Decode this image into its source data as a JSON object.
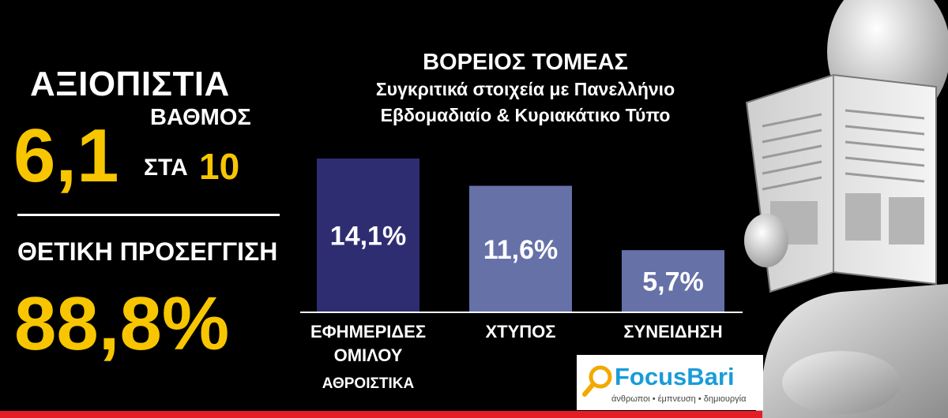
{
  "left_panel": {
    "reliability_label": "ΑΞΙΟΠΙΣΤΙΑ",
    "grade_label": "ΒΑΘΜΟΣ",
    "score": "6,1",
    "out_of_label": "ΣΤΑ",
    "scale": "10",
    "positive_label": "ΘΕΤΙΚΗ ΠΡΟΣΕΓΓΙΣΗ",
    "positive_value": "88,8%"
  },
  "chart_data": {
    "type": "bar",
    "title": "ΒΟΡΕΙΟΣ ΤΟΜΕΑΣ",
    "subtitle_line1": "Συγκριτικά στοιχεία με Πανελλήνιο",
    "subtitle_line2": "Εβδομαδιαίο & Κυριακάτικο Τύπο",
    "categories": [
      "ΕΦΗΜΕΡΙΔΕΣ ΟΜΙΛΟΥ ΑΘΡΟΙΣΤΙΚΑ",
      "ΧΤΥΠΟΣ",
      "ΣΥΝΕΙΔΗΣΗ"
    ],
    "category_lines": [
      [
        "ΕΦΗΜΕΡΙΔΕΣ",
        "ΟΜΙΛΟΥ",
        "ΑΘΡΟΙΣΤΙΚΑ"
      ],
      [
        "ΧΤΥΠΟΣ"
      ],
      [
        "ΣΥΝΕΙΔΗΣΗ"
      ]
    ],
    "values": [
      14.1,
      11.6,
      5.7
    ],
    "value_labels": [
      "14,1%",
      "11,6%",
      "5,7%"
    ],
    "colors": [
      "#2f2d72",
      "#6671a8",
      "#6671a8"
    ],
    "axis_color": "#ffffff",
    "ylim": [
      0,
      14.1
    ]
  },
  "logo": {
    "name": "FocusBari",
    "tagline": "άνθρωποι • έμπνευση • δημιουργία",
    "accent_color": "#1a9cd8"
  },
  "illustration": {
    "icon": "person-reading-newspaper-icon"
  },
  "colors": {
    "highlight": "#f7c600",
    "strip": "#e31e24"
  }
}
